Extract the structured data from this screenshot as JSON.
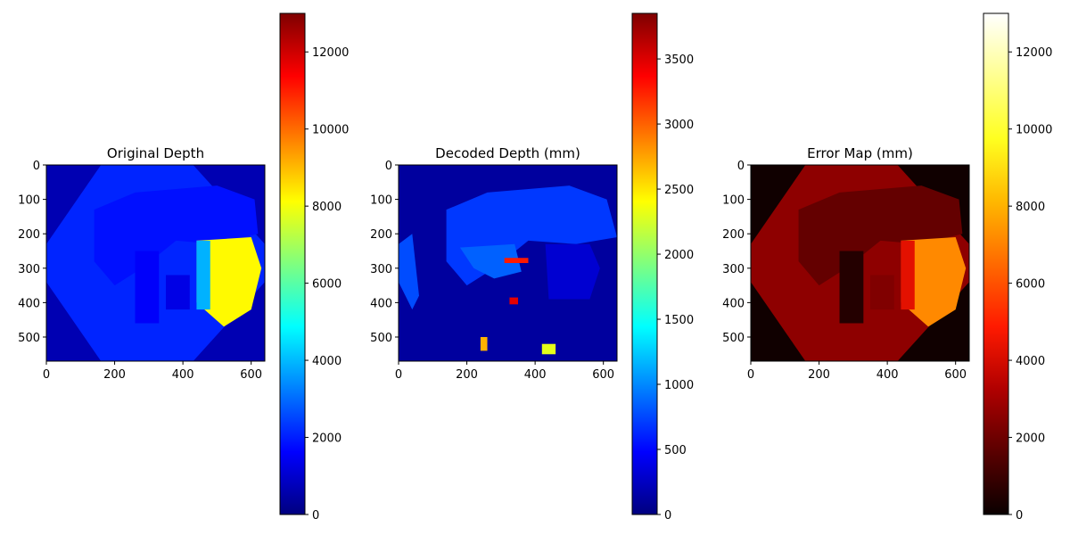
{
  "chart_data": [
    {
      "type": "heatmap",
      "title": "Original Depth",
      "xlabel": "",
      "ylabel": "",
      "xlim": [
        0,
        640
      ],
      "ylim": [
        570,
        0
      ],
      "xticks": [
        0,
        200,
        400,
        600
      ],
      "yticks": [
        0,
        100,
        200,
        300,
        400,
        500
      ],
      "colormap": "jet",
      "colorbar": {
        "range": [
          0,
          13000
        ],
        "ticks": [
          0,
          2000,
          4000,
          6000,
          8000,
          10000,
          12000
        ]
      }
    },
    {
      "type": "heatmap",
      "title": "Decoded Depth (mm)",
      "xlabel": "",
      "ylabel": "",
      "xlim": [
        0,
        640
      ],
      "ylim": [
        570,
        0
      ],
      "xticks": [
        0,
        200,
        400,
        600
      ],
      "yticks": [
        0,
        100,
        200,
        300,
        400,
        500
      ],
      "colormap": "jet",
      "colorbar": {
        "range": [
          0,
          3850
        ],
        "ticks": [
          0,
          500,
          1000,
          1500,
          2000,
          2500,
          3000,
          3500
        ]
      }
    },
    {
      "type": "heatmap",
      "title": "Error Map (mm)",
      "xlabel": "",
      "ylabel": "",
      "xlim": [
        0,
        640
      ],
      "ylim": [
        570,
        0
      ],
      "xticks": [
        0,
        200,
        400,
        600
      ],
      "yticks": [
        0,
        100,
        200,
        300,
        400,
        500
      ],
      "colormap": "hot",
      "colorbar": {
        "range": [
          0,
          13000
        ],
        "ticks": [
          0,
          2000,
          4000,
          6000,
          8000,
          10000,
          12000
        ]
      }
    }
  ],
  "colors": {
    "jet": [
      "#00007f",
      "#0000ff",
      "#007fff",
      "#00ffff",
      "#7fff7f",
      "#ffff00",
      "#ff7f00",
      "#ff0000",
      "#7f0000"
    ],
    "hot": [
      "#0a0000",
      "#5a0000",
      "#b00000",
      "#ff1a00",
      "#ff6a00",
      "#ffb800",
      "#ffff20",
      "#ffff90",
      "#ffffff"
    ],
    "axis": "#000000",
    "background": "#ffffff"
  }
}
